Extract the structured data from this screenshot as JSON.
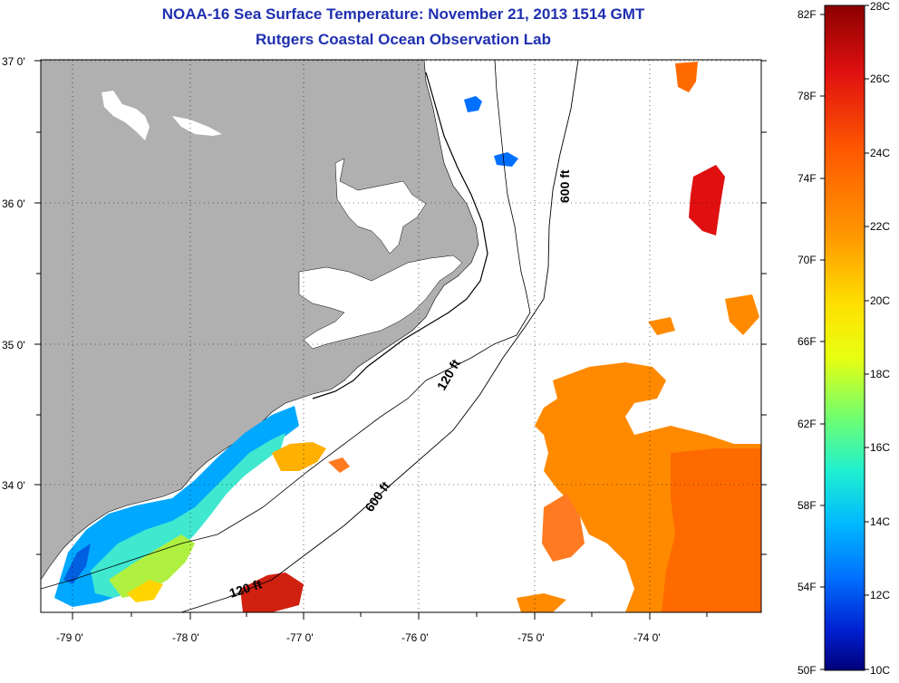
{
  "header": {
    "title": "NOAA-16 Sea Surface Temperature:  November 21, 2013 1514 GMT",
    "subtitle": "Rutgers Coastal Ocean Observation Lab"
  },
  "axes": {
    "lat_labels": [
      "37 0'",
      "36 0'",
      "35 0'",
      "34 0'"
    ],
    "lon_labels": [
      "-79 0'",
      "-78 0'",
      "-77 0'",
      "-76 0'",
      "-75 0'",
      "-74 0'"
    ]
  },
  "contours": {
    "label_120_upper": "120 ft",
    "label_600_upper": "600 ft",
    "label_600_lower": "600 ft",
    "label_120_lower": "120 ft"
  },
  "colorbar": {
    "fahrenheit_labels": [
      "82F",
      "78F",
      "74F",
      "70F",
      "66F",
      "62F",
      "58F",
      "54F",
      "50F"
    ],
    "celsius_labels": [
      "28C",
      "26C",
      "24C",
      "22C",
      "20C",
      "18C",
      "16C",
      "14C",
      "12C",
      "10C"
    ],
    "colors": [
      "#8b0000",
      "#e01010",
      "#ff5a00",
      "#ff9a00",
      "#ffd400",
      "#f0ff00",
      "#9cff40",
      "#30ffb0",
      "#00d0ff",
      "#0090ff",
      "#0040e0",
      "#0000a0"
    ]
  },
  "legend_colors": {
    "land": "#b0b0b0",
    "ocean_no_data": "#ffffff",
    "title_color": "#1f2fb0"
  }
}
